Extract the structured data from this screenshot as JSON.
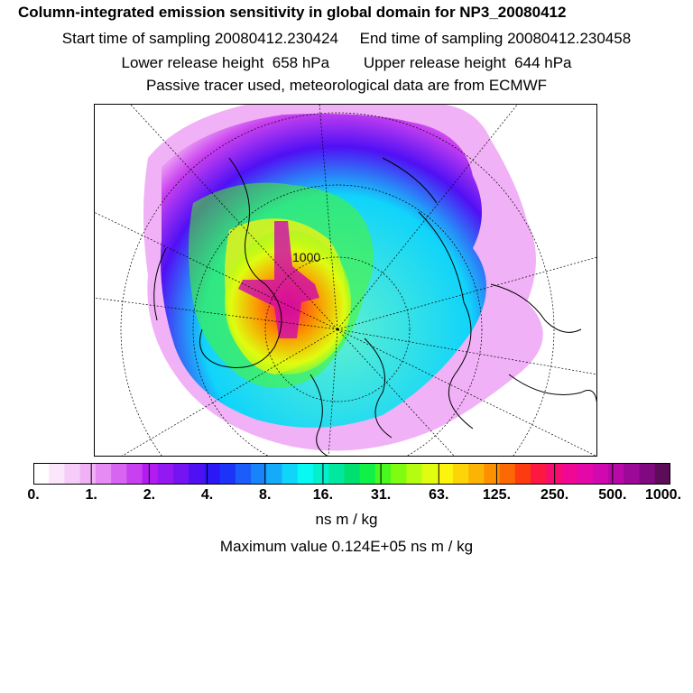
{
  "header": {
    "title": "Column-integrated emission sensitivity in global domain for NP3_20080412",
    "sampling_line": "Start time of sampling 20080412.230424     End time of sampling 20080412.230458",
    "release_line": "Lower release height  658 hPa        Upper release height  644 hPa",
    "tracer_line": "Passive tracer used, meteorological data are from ECMWF"
  },
  "map": {
    "overlay_label": "1000"
  },
  "colorbar": {
    "colors": [
      "#ffffff",
      "#fbe6fb",
      "#f6ccf8",
      "#f1b1f6",
      "#e68af4",
      "#d865f2",
      "#c840f0",
      "#b21cf0",
      "#9418f2",
      "#7414f2",
      "#5010f4",
      "#2c18f6",
      "#1c34f8",
      "#1c5cfa",
      "#1884fa",
      "#14acfa",
      "#10d4fa",
      "#08f8f4",
      "#04f0cc",
      "#00e8a0",
      "#00e070",
      "#10f048",
      "#48f820",
      "#80fc10",
      "#b4fc10",
      "#e0fc10",
      "#fcf40c",
      "#fcd408",
      "#fcb404",
      "#fc9000",
      "#fc6804",
      "#fc3c10",
      "#fc1840",
      "#f80c70",
      "#f00894",
      "#e408a8",
      "#d008b0",
      "#b808a8",
      "#9c0898",
      "#800880",
      "#5c0c58"
    ],
    "tick_labels": [
      "0.",
      "1.",
      "2.",
      "4.",
      "8.",
      "16.",
      "31.",
      "63.",
      "125.",
      "250.",
      "500.",
      "1000."
    ],
    "unit": "ns m / kg"
  },
  "max_value": "Maximum value  0.124E+05 ns m / kg"
}
